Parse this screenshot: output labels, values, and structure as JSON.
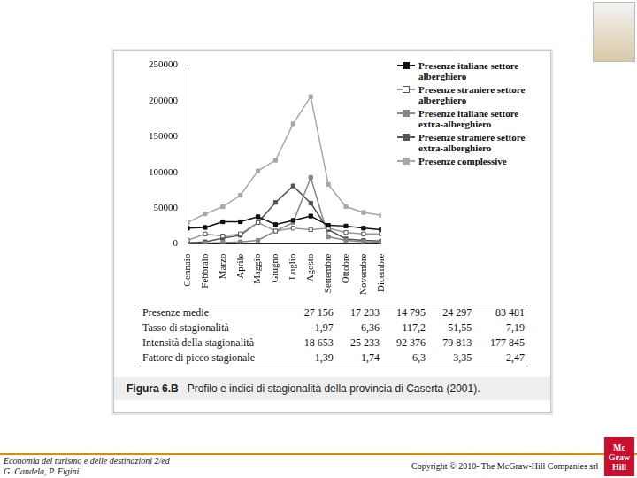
{
  "chart_data": {
    "type": "line",
    "categories": [
      "Gennaio",
      "Febbraio",
      "Marzo",
      "Aprile",
      "Maggio",
      "Giugno",
      "Luglio",
      "Agosto",
      "Settembre",
      "Ottobre",
      "Novembre",
      "Dicembre"
    ],
    "series": [
      {
        "name": "Presenze italiane settore alberghiero",
        "color": "#111111",
        "marker": "square",
        "values": [
          22000,
          23000,
          31000,
          31000,
          38000,
          27000,
          33000,
          39000,
          26000,
          25000,
          22000,
          20000
        ]
      },
      {
        "name": "Presenze straniere settore alberghiero",
        "color": "#9a9a9a",
        "marker": "square_open",
        "values": [
          5000,
          14000,
          11000,
          14000,
          30000,
          18000,
          22000,
          20000,
          22000,
          16000,
          14000,
          14000
        ]
      },
      {
        "name": "Presenze italiane settore extra-alberghiero",
        "color": "#888888",
        "marker": "square",
        "values": [
          800,
          1000,
          2000,
          3000,
          5000,
          18000,
          30000,
          93000,
          10000,
          5000,
          3000,
          2000
        ]
      },
      {
        "name": "Presenze straniere settore extra-alberghiero",
        "color": "#555555",
        "marker": "square",
        "values": [
          1600,
          3000,
          8000,
          12000,
          30000,
          58000,
          81000,
          57000,
          20000,
          7000,
          5000,
          4000
        ]
      },
      {
        "name": "Presenze complessive",
        "color": "#a8a8a8",
        "marker": "square",
        "values": [
          30000,
          42000,
          52000,
          68000,
          102000,
          117000,
          168000,
          206000,
          83000,
          52000,
          44000,
          40000
        ]
      }
    ],
    "ylim": [
      0,
      250000
    ],
    "yticks": [
      0,
      50000,
      100000,
      150000,
      200000,
      250000
    ],
    "grid": false,
    "legend": "upper right"
  },
  "table": {
    "rows": [
      {
        "label": "Presenze medie",
        "values": [
          "27 156",
          "17 233",
          "14 795",
          "24 297",
          "83 481"
        ]
      },
      {
        "label": "Tasso di stagionalità",
        "values": [
          "1,97",
          "6,36",
          "117,2",
          "51,55",
          "7,19"
        ]
      },
      {
        "label": "Intensità della stagionalità",
        "values": [
          "18 653",
          "25 233",
          "92 376",
          "79 813",
          "177 845"
        ]
      },
      {
        "label": "Fattore di picco stagionale",
        "values": [
          "1,39",
          "1,74",
          "6,3",
          "3,35",
          "2,47"
        ]
      }
    ]
  },
  "caption": {
    "label": "Figura 6.B",
    "text": "Profilo e indici di stagionalità della provincia di Caserta (2001)."
  },
  "footer": {
    "left": [
      "Economia del turismo e delle destinazioni 2/ed",
      "G. Candela, P. Figini"
    ],
    "right": "Copyright © 2010- The McGraw-Hill Companies srl",
    "logo": "Mc Graw Hill"
  }
}
